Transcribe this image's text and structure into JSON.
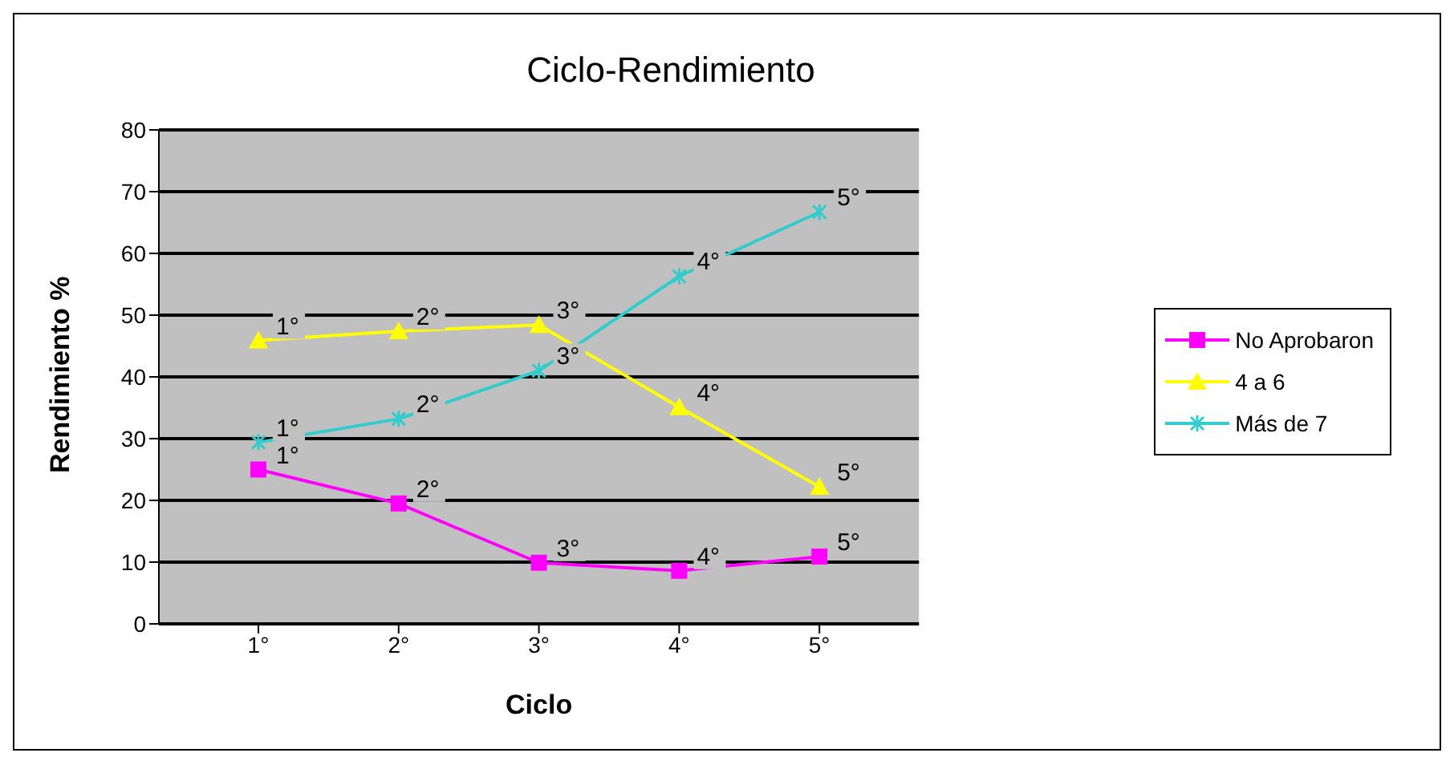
{
  "chart_data": {
    "type": "line",
    "title": "Ciclo-Rendimiento",
    "xlabel": "Ciclo",
    "ylabel": "Rendimiento %",
    "categories": [
      "1°",
      "2°",
      "3°",
      "4°",
      "5°"
    ],
    "series": [
      {
        "name": "No Aprobaron",
        "color": "#ff00ff",
        "marker": "square",
        "values": [
          25,
          19.5,
          9.9,
          8.6,
          10.9
        ]
      },
      {
        "name": "4 a 6",
        "color": "#ffff00",
        "marker": "triangle",
        "values": [
          45.9,
          47.4,
          48.4,
          35.1,
          22.2
        ]
      },
      {
        "name": "Más de 7",
        "color": "#33cccc",
        "marker": "cross",
        "values": [
          29.4,
          33.2,
          41,
          56.3,
          66.7
        ]
      }
    ],
    "annotations": [
      {
        "text": "1°",
        "x": "1°",
        "y": 25
      },
      {
        "text": "2°",
        "x": "2°",
        "y": 19.5
      },
      {
        "text": "3°",
        "x": "3°",
        "y": 9.9
      },
      {
        "text": "4°",
        "x": "4°",
        "y": 8.6
      },
      {
        "text": "5°",
        "x": "5°",
        "y": 10.9
      },
      {
        "text": "1°",
        "x": "1°",
        "y": 45.9
      },
      {
        "text": "2°",
        "x": "2°",
        "y": 47.4
      },
      {
        "text": "3°",
        "x": "3°",
        "y": 48.4
      },
      {
        "text": "4°",
        "x": "4°",
        "y": 35.1
      },
      {
        "text": "5°",
        "x": "5°",
        "y": 22.2
      },
      {
        "text": "1°",
        "x": "1°",
        "y": 29.4
      },
      {
        "text": "2°",
        "x": "2°",
        "y": 33.2
      },
      {
        "text": "3°",
        "x": "3°",
        "y": 41
      },
      {
        "text": "4°",
        "x": "4°",
        "y": 56.3
      },
      {
        "text": "5°",
        "x": "5°",
        "y": 66.7
      }
    ],
    "ylim": [
      0,
      80
    ],
    "yticks": [
      0,
      10,
      20,
      30,
      40,
      50,
      60,
      70,
      80
    ],
    "grid": "y",
    "legend": "right"
  }
}
